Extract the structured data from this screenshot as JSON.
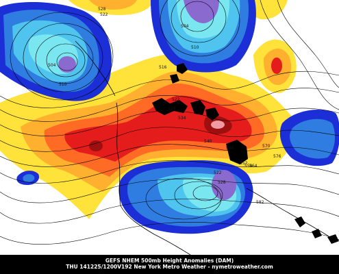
{
  "caption": {
    "line1": "GEFS NHEM 500mb Height Anomalies (DAM)",
    "line2": "THU 141225/1200V192 New York Metro Weather - nymetroweather.com"
  },
  "contour_labels": [
    "528",
    "522",
    "504",
    "510",
    "504",
    "510",
    "516",
    "522",
    "528",
    "534",
    "540",
    "546",
    "552",
    "558",
    "564",
    "570",
    "576",
    "582",
    "522",
    "528"
  ],
  "colors": {
    "strong_negative": "#1c2fd6",
    "negative": "#2f7de0",
    "weak_negative": "#4fc4ee",
    "slight_negative": "#7ae6f0",
    "deep_negative_core": "#8b6ad0",
    "slight_positive": "#ffe23a",
    "weak_positive": "#ffb02e",
    "positive": "#ff6a24",
    "strong_positive": "#e51c1c",
    "deep_positive_core": "#9e1010",
    "land_black": "#000000",
    "background": "#ffffff"
  }
}
